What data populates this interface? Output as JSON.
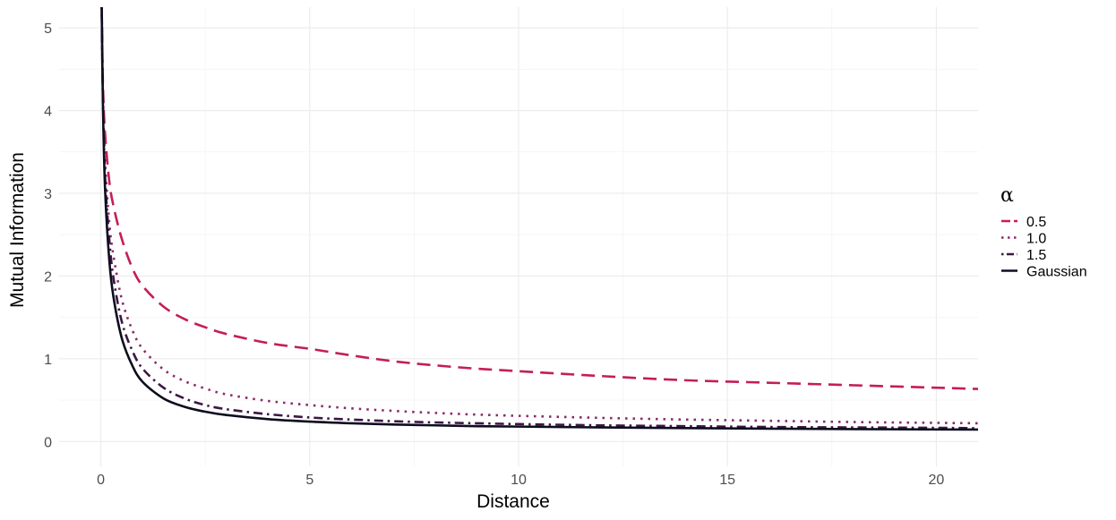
{
  "chart_data": {
    "type": "line",
    "title": "",
    "xlabel": "Distance",
    "ylabel": "Mutual Information",
    "xlim": [
      -1.0,
      21.0
    ],
    "ylim": [
      -0.3,
      5.25
    ],
    "x_ticks": [
      0,
      5,
      10,
      15,
      20
    ],
    "x_tick_labels": [
      "0",
      "5",
      "10",
      "15",
      "20"
    ],
    "y_ticks": [
      0,
      1,
      2,
      3,
      4,
      5
    ],
    "y_tick_labels": [
      "0",
      "1",
      "2",
      "3",
      "4",
      "5"
    ],
    "grid": true,
    "legend": {
      "title": "α",
      "placement": "right"
    },
    "series": [
      {
        "name": "0.5",
        "color": "#c41e55",
        "dash": "long-dash",
        "x": [
          0.02,
          0.05,
          0.1,
          0.2,
          0.3,
          0.5,
          0.75,
          1,
          1.5,
          2,
          2.5,
          3,
          4,
          5,
          6,
          7,
          8,
          9,
          10,
          12,
          14,
          16,
          18,
          20,
          21
        ],
        "y": [
          5.25,
          4.3,
          3.72,
          3.15,
          2.85,
          2.45,
          2.1,
          1.88,
          1.63,
          1.48,
          1.38,
          1.3,
          1.19,
          1.12,
          1.04,
          0.97,
          0.92,
          0.88,
          0.85,
          0.79,
          0.74,
          0.71,
          0.68,
          0.65,
          0.635
        ]
      },
      {
        "name": "1.0",
        "color": "#8b2a66",
        "dash": "dotted",
        "x": [
          0.02,
          0.05,
          0.1,
          0.2,
          0.3,
          0.5,
          0.75,
          1,
          1.5,
          2,
          2.5,
          3,
          4,
          5,
          6,
          7,
          8,
          9,
          10,
          12,
          14,
          16,
          18,
          20,
          21
        ],
        "y": [
          5.25,
          4.2,
          3.4,
          2.65,
          2.25,
          1.72,
          1.35,
          1.12,
          0.87,
          0.73,
          0.64,
          0.57,
          0.49,
          0.44,
          0.4,
          0.37,
          0.345,
          0.325,
          0.31,
          0.285,
          0.265,
          0.25,
          0.235,
          0.225,
          0.22
        ]
      },
      {
        "name": "1.5",
        "color": "#3d1744",
        "dash": "dot-dash",
        "x": [
          0.02,
          0.05,
          0.1,
          0.2,
          0.3,
          0.5,
          0.75,
          1,
          1.5,
          2,
          2.5,
          3,
          4,
          5,
          6,
          7,
          8,
          9,
          10,
          12,
          14,
          16,
          18,
          20,
          21
        ],
        "y": [
          5.25,
          4.1,
          3.2,
          2.45,
          1.98,
          1.45,
          1.1,
          0.88,
          0.65,
          0.52,
          0.44,
          0.39,
          0.33,
          0.29,
          0.265,
          0.245,
          0.23,
          0.22,
          0.21,
          0.195,
          0.185,
          0.175,
          0.17,
          0.165,
          0.16
        ]
      },
      {
        "name": "Gaussian",
        "color": "#0d0d1f",
        "dash": "solid",
        "x": [
          0.02,
          0.05,
          0.1,
          0.2,
          0.3,
          0.5,
          0.75,
          1,
          1.5,
          2,
          2.5,
          3,
          4,
          5,
          6,
          7,
          8,
          9,
          10,
          12,
          14,
          16,
          18,
          20,
          21
        ],
        "y": [
          5.25,
          4.05,
          3.05,
          2.2,
          1.75,
          1.25,
          0.92,
          0.72,
          0.52,
          0.42,
          0.36,
          0.32,
          0.27,
          0.24,
          0.22,
          0.205,
          0.195,
          0.185,
          0.18,
          0.17,
          0.162,
          0.155,
          0.15,
          0.146,
          0.144
        ]
      }
    ]
  }
}
